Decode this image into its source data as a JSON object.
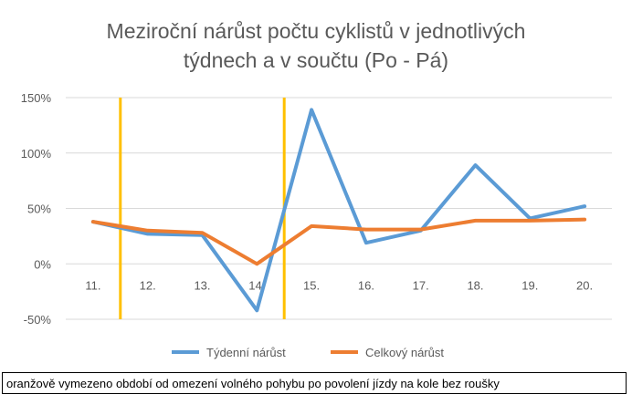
{
  "chart_data": {
    "type": "line",
    "title_lines": [
      "Meziroční nárůst počtu cyklistů v jednotlivých",
      "týdnech a v součtu (Po - Pá)"
    ],
    "categories": [
      "11.",
      "12.",
      "13.",
      "14.",
      "15.",
      "16.",
      "17.",
      "18.",
      "19.",
      "20."
    ],
    "series": [
      {
        "name": "Týdenní nárůst",
        "color": "#5b9bd5",
        "values": [
          38,
          27,
          26,
          -42,
          139,
          19,
          30,
          89,
          41,
          52
        ]
      },
      {
        "name": "Celkový nárůst",
        "color": "#ed7d31",
        "values": [
          38,
          30,
          28,
          0,
          34,
          31,
          31,
          39,
          39,
          40
        ]
      }
    ],
    "y_ticks": [
      "150%",
      "100%",
      "50%",
      "0%",
      "-50%"
    ],
    "y_tick_values": [
      150,
      100,
      50,
      0,
      -50
    ],
    "ylim": [
      -50,
      150
    ],
    "grid": true,
    "grid_color": "#d9d9d9",
    "legend_position": "bottom",
    "markers": {
      "color": "#ffc000",
      "between_categories": [
        [
          "11.",
          "12."
        ],
        [
          "14.",
          "15."
        ]
      ]
    }
  },
  "caption": "oranžově vymezeno období od omezení volného pohybu po povolení jízdy na kole bez roušky"
}
